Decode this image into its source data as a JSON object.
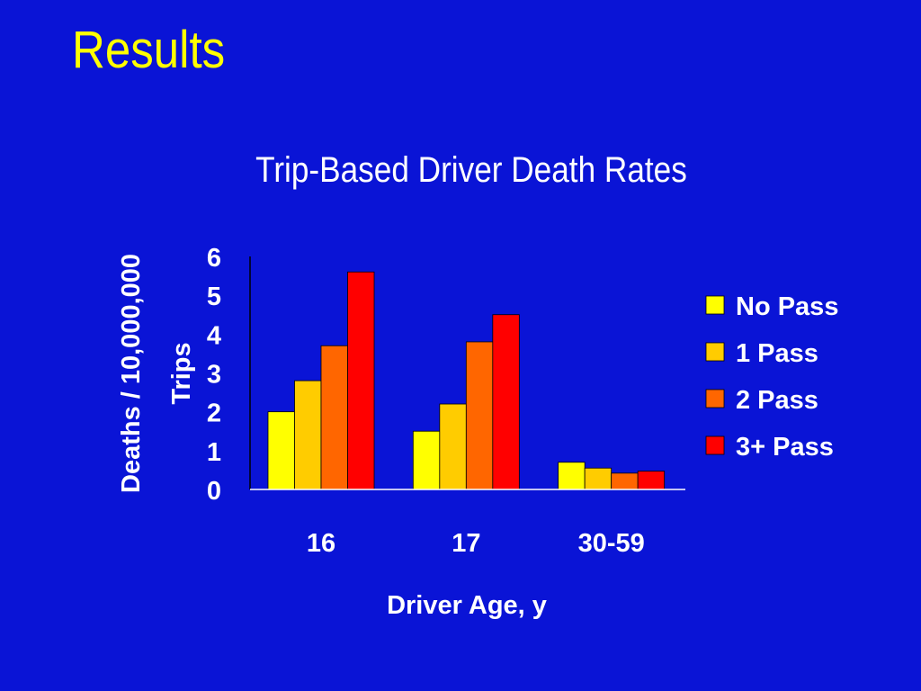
{
  "slide": {
    "title": "Results"
  },
  "colors": {
    "background": "#0a14d6",
    "title": "#ffff00",
    "text": "#ffffff"
  },
  "chart_data": {
    "type": "bar",
    "title": "Trip-Based Driver Death Rates",
    "xlabel": "Driver Age, y",
    "ylabel_lines": [
      "Deaths / 10,000,000",
      "Trips"
    ],
    "categories": [
      "16",
      "17",
      "30-59"
    ],
    "yticks": [
      "0",
      "1",
      "2",
      "3",
      "4",
      "5",
      "6"
    ],
    "ylim": [
      0,
      6
    ],
    "grid": false,
    "legend_position": "right",
    "series": [
      {
        "name": "No Pass",
        "color": "#ffff00",
        "values": [
          2.0,
          1.5,
          0.7
        ]
      },
      {
        "name": "1 Pass",
        "color": "#ffcc00",
        "values": [
          2.8,
          2.2,
          0.55
        ]
      },
      {
        "name": "2 Pass",
        "color": "#ff6600",
        "values": [
          3.7,
          3.8,
          0.42
        ]
      },
      {
        "name": "3+ Pass",
        "color": "#ff0000",
        "values": [
          5.6,
          4.5,
          0.47
        ]
      }
    ]
  }
}
